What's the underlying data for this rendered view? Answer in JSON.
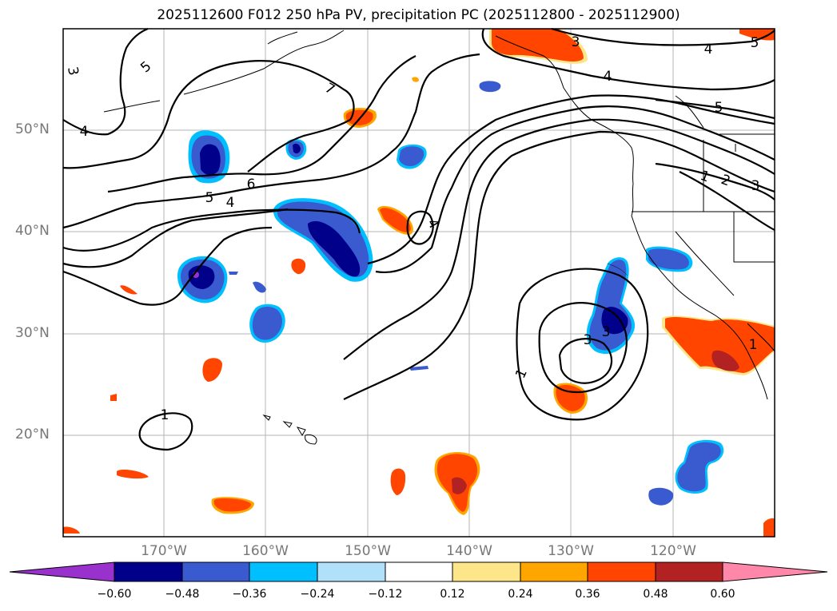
{
  "title": "2025112600 F012 250 hPa PV, precipitation PC (2025112800 - 2025112900)",
  "lat_labels": [
    "50°N",
    "40°N",
    "30°N",
    "20°N"
  ],
  "lon_labels": [
    "170°W",
    "160°W",
    "150°W",
    "140°W",
    "130°W",
    "120°W"
  ],
  "contour_labels": [
    "3",
    "5",
    "4",
    "7",
    "6",
    "5",
    "4",
    "4",
    "3",
    "4",
    "4",
    "5",
    "1",
    "2",
    "3",
    "5",
    "1",
    "3",
    "3",
    "1",
    "1"
  ],
  "colorbar": {
    "ticks": [
      "−0.60",
      "−0.48",
      "−0.36",
      "−0.24",
      "−0.12",
      "0.12",
      "0.24",
      "0.36",
      "0.48",
      "0.60"
    ],
    "colors": [
      "#9932cc",
      "#00008b",
      "#3a5bd0",
      "#00bfff",
      "#b0e0fa",
      "#ffffff",
      "#fde68a",
      "#ffa500",
      "#ff4500",
      "#b22222",
      "#ff88aa"
    ]
  },
  "colors": {
    "neg_strong": "#00008b",
    "neg_mid": "#3a5bd0",
    "neg_light": "#00bfff",
    "neg_faint": "#b0e0fa",
    "pos_faint": "#fde68a",
    "pos_light": "#ffa500",
    "pos_mid": "#ff4500",
    "pos_strong": "#b22222",
    "extreme_neg": "#9932cc"
  }
}
